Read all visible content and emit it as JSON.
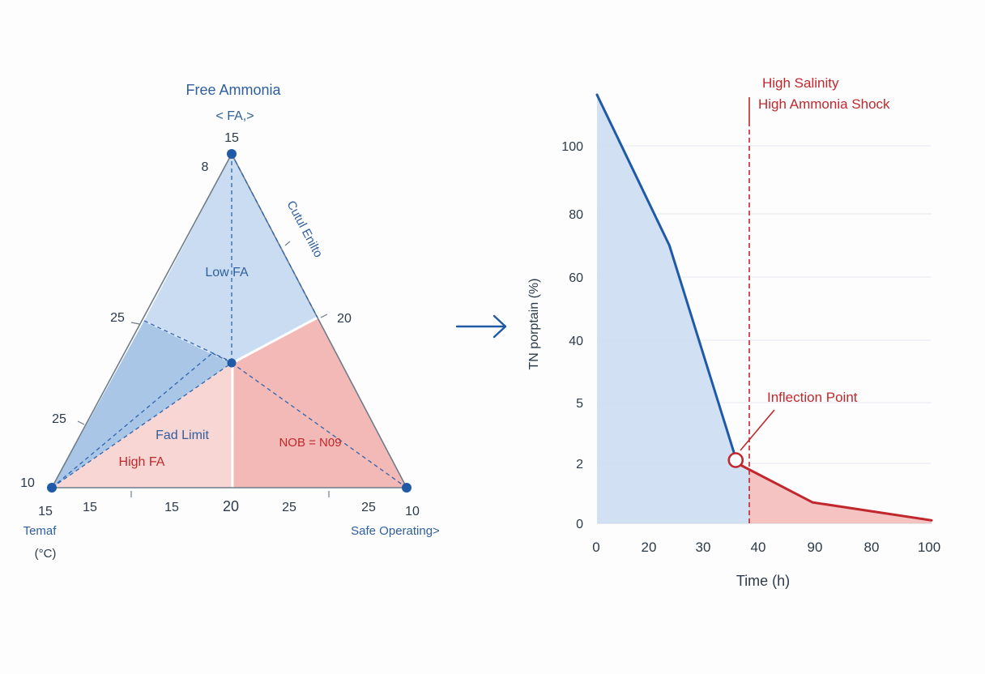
{
  "colors": {
    "blue": "#1f5aa6",
    "blue_fill": "#c9dcf1",
    "blue_fill_dark": "#a9c6e6",
    "red": "#c0282d",
    "red_fill": "#f2b9b7",
    "red_fill_light": "#f7d6d4",
    "grid": "#e6e9ee",
    "text": "#2b3a4a"
  },
  "ternary": {
    "title_line1": "Free Ammonia",
    "title_line2": "< FA,>",
    "apex_value": "15",
    "apex_inner_value": "8",
    "right_side_label": "Cutul Enilto",
    "left_side_ticks": [
      "25",
      "25",
      "10"
    ],
    "right_side_tick": "20",
    "bottom_ticks": [
      "15",
      "15",
      "15",
      "20",
      "25",
      "25",
      "10"
    ],
    "bottom_left_label_line1": "Temaf",
    "bottom_left_label_line2": "(°C)",
    "bottom_right_label": "Safe Operating>",
    "region_low_fa": "Low FA",
    "region_fad_limit": "Fad Limit",
    "region_high_fa": "High FA",
    "region_nob": "NOB = N09"
  },
  "arrow": {
    "icon": "arrow-right-icon"
  },
  "chart_data": {
    "type": "area",
    "xlabel": "Time (h)",
    "ylabel": "TN  porptain (%)",
    "x_ticks": [
      "0",
      "20",
      "30",
      "40",
      "90",
      "80",
      "100"
    ],
    "y_ticks": [
      "0",
      "2",
      "5",
      "40",
      "60",
      "80",
      "100"
    ],
    "series": [
      {
        "segment": "before-shock",
        "color": "#1f5aa6",
        "points": [
          [
            0,
            115
          ],
          [
            24,
            70
          ],
          [
            36,
            2
          ]
        ]
      },
      {
        "segment": "after-shock",
        "color": "#c0282d",
        "points": [
          [
            36,
            2
          ],
          [
            90,
            0.7
          ],
          [
            100,
            0.1
          ]
        ]
      }
    ],
    "shock_line_x": 38,
    "shock_label_line1": "High Salinity",
    "shock_label_line2": "High Ammonia Shock",
    "inflection_point": {
      "x": 36,
      "y": 2
    },
    "inflection_label": "Inflection Point",
    "grid": true
  }
}
